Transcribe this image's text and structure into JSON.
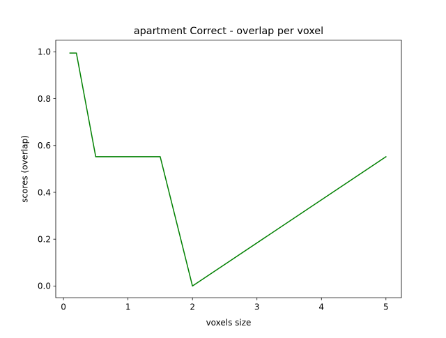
{
  "chart_data": {
    "type": "line",
    "title": "apartment Correct - overlap per voxel",
    "xlabel": "voxels size",
    "ylabel": "scores (overlap)",
    "xlim": [
      -0.12,
      5.24
    ],
    "ylim": [
      -0.05,
      1.05
    ],
    "xticks": [
      0,
      1,
      2,
      3,
      4,
      5
    ],
    "xtick_labels": [
      "0",
      "1",
      "2",
      "3",
      "4",
      "5"
    ],
    "yticks": [
      0.0,
      0.2,
      0.4,
      0.6,
      0.8,
      1.0
    ],
    "ytick_labels": [
      "0.0",
      "0.2",
      "0.4",
      "0.6",
      "0.8",
      "1.0"
    ],
    "grid": false,
    "legend": "none",
    "series": [
      {
        "color": "#008000",
        "x": [
          0.1,
          0.2,
          0.5,
          1.0,
          1.5,
          2.0,
          5.0
        ],
        "y": [
          0.995,
          0.995,
          0.552,
          0.552,
          0.552,
          0.0,
          0.552
        ]
      }
    ]
  }
}
